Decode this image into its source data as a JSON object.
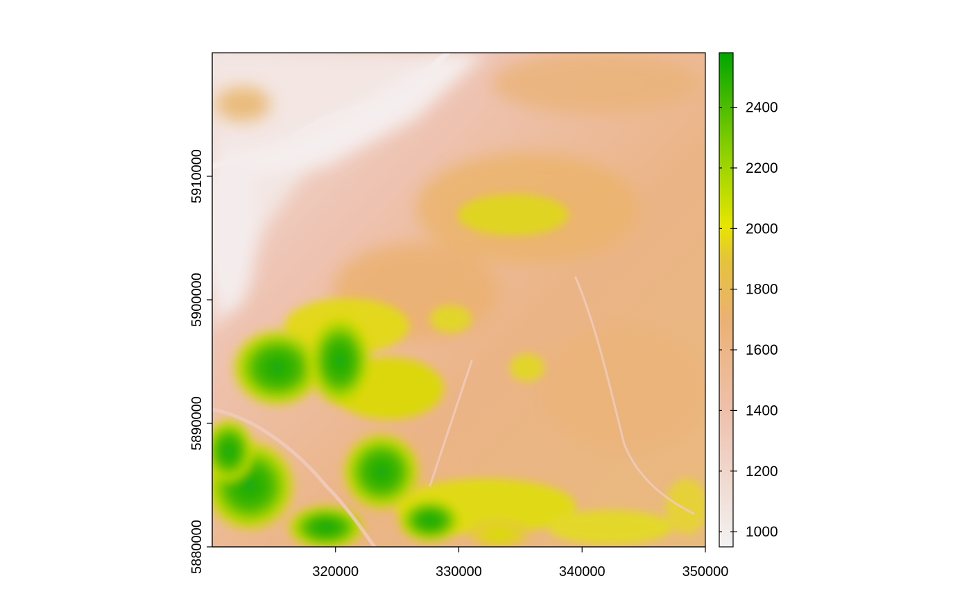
{
  "map": {
    "x_axis": {
      "ticks": [
        320000,
        330000,
        340000,
        350000
      ],
      "labels": [
        "320000",
        "330000",
        "340000",
        "350000"
      ],
      "range": [
        310000,
        350000
      ]
    },
    "y_axis": {
      "ticks": [
        5880000,
        5890000,
        5900000,
        5910000
      ],
      "labels": [
        "5880000",
        "5890000",
        "5900000",
        "5910000"
      ],
      "range": [
        5880000,
        5920000
      ]
    }
  },
  "legend": {
    "ticks": [
      1000,
      1200,
      1400,
      1600,
      1800,
      2000,
      2200,
      2400
    ],
    "labels": [
      "1000",
      "1200",
      "1400",
      "1600",
      "1800",
      "2000",
      "2200",
      "2400"
    ],
    "range": [
      950,
      2580
    ],
    "colors": {
      "low": "#f2f2f2",
      "mid": "#eab37a",
      "high_mid": "#e6e600",
      "high": "#00a600"
    }
  }
}
